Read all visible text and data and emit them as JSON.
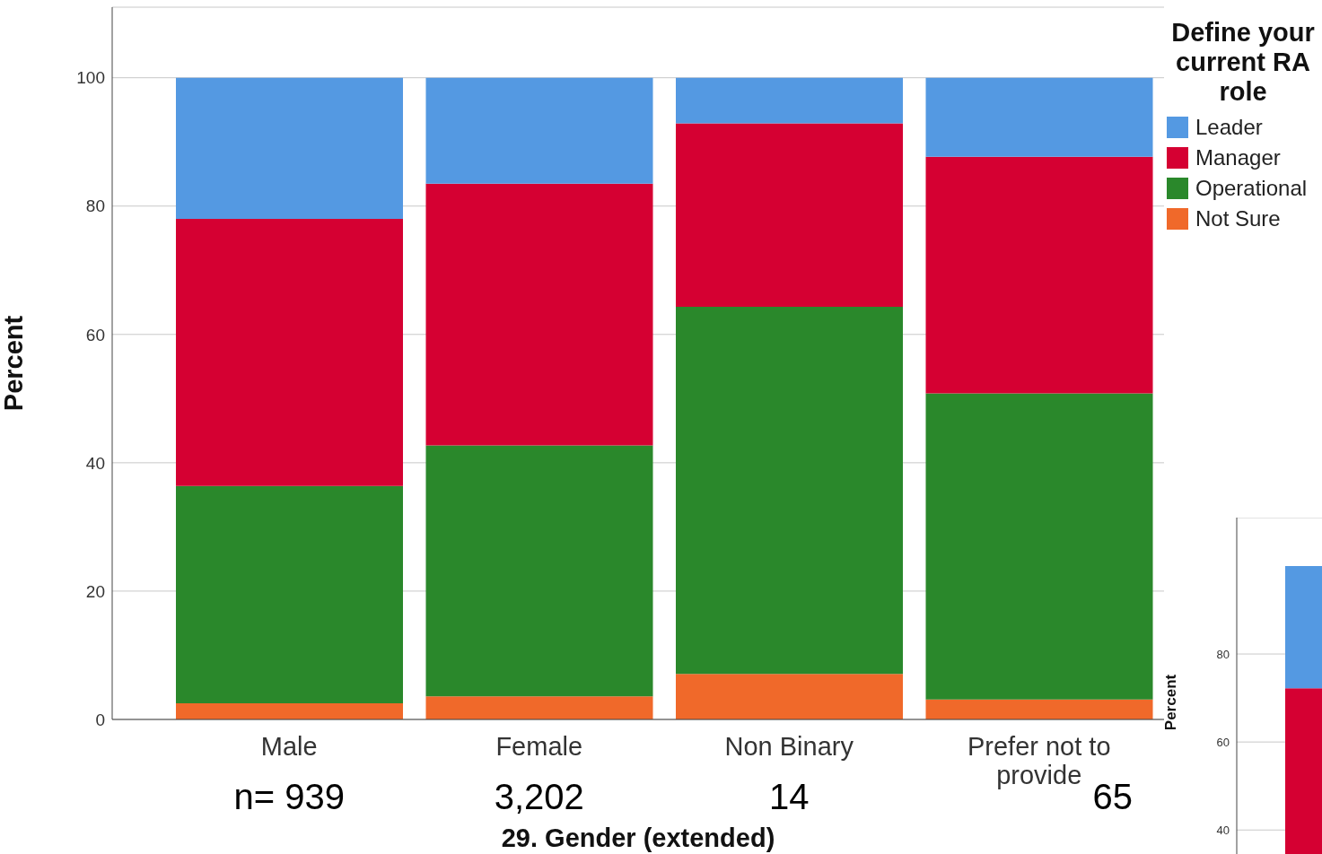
{
  "chart_data": [
    {
      "type": "bar",
      "stacked": true,
      "categories": [
        "Male",
        "Female",
        "Non Binary",
        "Prefer not to provide"
      ],
      "series": [
        {
          "name": "Not Sure",
          "color": "#f0692a",
          "values": [
            2.5,
            3.6,
            7.1,
            3.1
          ]
        },
        {
          "name": "Operational",
          "color": "#2a882b",
          "values": [
            33.9,
            39.1,
            57.2,
            47.7
          ]
        },
        {
          "name": "Manager",
          "color": "#d50032",
          "values": [
            41.6,
            40.8,
            28.6,
            36.9
          ]
        },
        {
          "name": "Leader",
          "color": "#5499e2",
          "values": [
            22.0,
            16.5,
            7.1,
            12.3
          ]
        }
      ],
      "ylim": [
        0,
        111
      ],
      "yticks": [
        0,
        20,
        40,
        60,
        80,
        100
      ],
      "grid": "y",
      "ylabel": "Percent",
      "xlabel": "29. Gender (extended)",
      "legend": "right",
      "legend_title": "Define your current RA role",
      "annotations": [
        "n= 939",
        "3,202",
        "14",
        "65"
      ]
    },
    {
      "type": "bar",
      "stacked": true,
      "categories": [
        null
      ],
      "series": [
        {
          "color": "#d50032",
          "values": [
            72.2
          ]
        },
        {
          "color": "#5499e2",
          "values": [
            27.8
          ]
        }
      ],
      "ylim": [
        27,
        111
      ],
      "yticks": [
        40,
        60,
        80
      ],
      "grid": "y",
      "ylabel": "Percent",
      "tick_labels": "y"
    }
  ]
}
